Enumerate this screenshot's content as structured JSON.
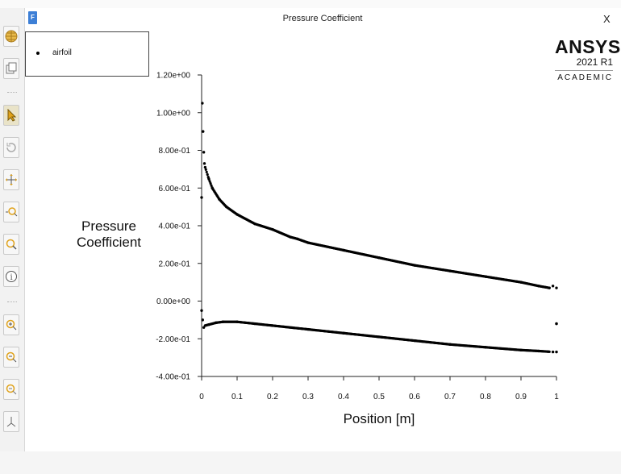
{
  "window": {
    "badge": "F",
    "title": "Pressure Coefficient",
    "close": "X"
  },
  "legend": {
    "items": [
      {
        "label": "airfoil"
      }
    ]
  },
  "brand": {
    "name": "ANSYS",
    "version": "2021 R1",
    "edition": "ACADEMIC"
  },
  "toolbar": {
    "buttons": [
      "globe-icon",
      "copy-icon",
      "pointer-icon",
      "rotate-icon",
      "pan-icon",
      "zoom-icon",
      "magnify-icon",
      "info-icon",
      "zoom-in-icon",
      "zoom-out-icon",
      "zoom-fit-icon",
      "axes-icon"
    ]
  },
  "chart_data": {
    "type": "scatter",
    "title": "Pressure Coefficient",
    "xlabel": "Position [m]",
    "ylabel": "Pressure Coefficient",
    "xlim": [
      0,
      1
    ],
    "ylim": [
      -0.4,
      1.2
    ],
    "xticks": [
      0,
      0.1,
      0.2,
      0.3,
      0.4,
      0.5,
      0.6,
      0.7,
      0.8,
      0.9,
      1
    ],
    "xtick_labels": [
      "0",
      "0.1",
      "0.2",
      "0.3",
      "0.4",
      "0.5",
      "0.6",
      "0.7",
      "0.8",
      "0.9",
      "1"
    ],
    "yticks": [
      1.2,
      1.0,
      0.8,
      0.6,
      0.4,
      0.2,
      0.0,
      -0.2,
      -0.4
    ],
    "ytick_labels": [
      "1.20e+00",
      "1.00e+00",
      "8.00e-01",
      "6.00e-01",
      "4.00e-01",
      "2.00e-01",
      "0.00e+00",
      "-2.00e-01",
      "-4.00e-01"
    ],
    "grid": false,
    "legend_position": "top-left",
    "series": [
      {
        "name": "airfoil",
        "upper": [
          [
            0.0,
            0.55
          ],
          [
            0.002,
            1.05
          ],
          [
            0.004,
            0.9
          ],
          [
            0.006,
            0.79
          ],
          [
            0.008,
            0.73
          ],
          [
            0.01,
            0.71
          ],
          [
            0.02,
            0.65
          ],
          [
            0.03,
            0.6
          ],
          [
            0.05,
            0.54
          ],
          [
            0.07,
            0.5
          ],
          [
            0.1,
            0.46
          ],
          [
            0.15,
            0.41
          ],
          [
            0.2,
            0.38
          ],
          [
            0.25,
            0.34
          ],
          [
            0.27,
            0.33
          ],
          [
            0.3,
            0.31
          ],
          [
            0.4,
            0.27
          ],
          [
            0.5,
            0.23
          ],
          [
            0.6,
            0.19
          ],
          [
            0.7,
            0.16
          ],
          [
            0.8,
            0.13
          ],
          [
            0.9,
            0.1
          ],
          [
            0.95,
            0.08
          ],
          [
            0.98,
            0.07
          ],
          [
            0.99,
            0.08
          ],
          [
            1.0,
            0.07
          ]
        ],
        "lower": [
          [
            0.0,
            -0.05
          ],
          [
            0.003,
            -0.1
          ],
          [
            0.006,
            -0.14
          ],
          [
            0.01,
            -0.13
          ],
          [
            0.02,
            -0.125
          ],
          [
            0.04,
            -0.115
          ],
          [
            0.06,
            -0.11
          ],
          [
            0.1,
            -0.11
          ],
          [
            0.15,
            -0.12
          ],
          [
            0.2,
            -0.13
          ],
          [
            0.3,
            -0.15
          ],
          [
            0.4,
            -0.17
          ],
          [
            0.5,
            -0.19
          ],
          [
            0.6,
            -0.21
          ],
          [
            0.7,
            -0.23
          ],
          [
            0.8,
            -0.245
          ],
          [
            0.9,
            -0.26
          ],
          [
            0.95,
            -0.265
          ],
          [
            0.99,
            -0.27
          ],
          [
            1.0,
            -0.27
          ]
        ],
        "extra": [
          [
            1.0,
            -0.12
          ]
        ]
      }
    ]
  }
}
